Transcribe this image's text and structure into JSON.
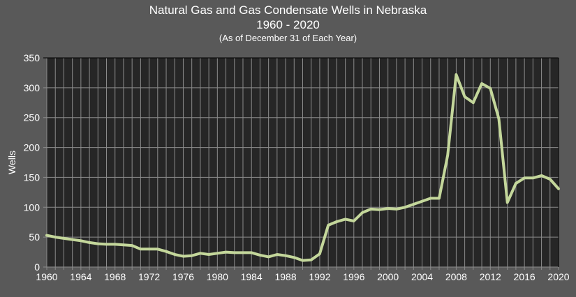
{
  "header": {
    "title": "Natural Gas and Gas Condensate Wells in Nebraska",
    "subtitle": "1960 - 2020",
    "note": "(As of December 31 of Each Year)"
  },
  "colors": {
    "background": "#595959",
    "plot_background": "#262626",
    "gridline": "#8c8c8c",
    "series": "#c4d79b"
  },
  "chart_data": {
    "type": "line",
    "title": "Natural Gas and Gas Condensate Wells in Nebraska 1960 - 2020",
    "subtitle": "(As of December 31 of Each Year)",
    "xlabel": "",
    "ylabel": "Wells",
    "ylim": [
      0,
      350
    ],
    "xlim": [
      1960,
      2020
    ],
    "yticks": [
      0,
      50,
      100,
      150,
      200,
      250,
      300,
      350
    ],
    "xticks": [
      1960,
      1964,
      1968,
      1972,
      1976,
      1980,
      1984,
      1988,
      1992,
      1996,
      2000,
      2004,
      2008,
      2012,
      2016,
      2020
    ],
    "grid": true,
    "legend": null,
    "x": [
      1960,
      1961,
      1962,
      1963,
      1964,
      1965,
      1966,
      1967,
      1968,
      1969,
      1970,
      1971,
      1972,
      1973,
      1974,
      1975,
      1976,
      1977,
      1978,
      1979,
      1980,
      1981,
      1982,
      1983,
      1984,
      1985,
      1986,
      1987,
      1988,
      1989,
      1990,
      1991,
      1992,
      1993,
      1994,
      1995,
      1996,
      1997,
      1998,
      1999,
      2000,
      2001,
      2002,
      2003,
      2004,
      2005,
      2006,
      2007,
      2008,
      2009,
      2010,
      2011,
      2012,
      2013,
      2014,
      2015,
      2016,
      2017,
      2018,
      2019,
      2020
    ],
    "series": [
      {
        "name": "Wells",
        "values": [
          53,
          50,
          48,
          46,
          44,
          41,
          39,
          38,
          38,
          37,
          36,
          30,
          30,
          30,
          26,
          21,
          18,
          19,
          23,
          21,
          23,
          25,
          24,
          24,
          24,
          20,
          17,
          21,
          19,
          16,
          11,
          12,
          22,
          70,
          76,
          80,
          77,
          91,
          97,
          96,
          98,
          97,
          100,
          105,
          110,
          115,
          115,
          187,
          322,
          285,
          275,
          307,
          299,
          248,
          108,
          140,
          149,
          149,
          153,
          147,
          131
        ]
      }
    ]
  }
}
